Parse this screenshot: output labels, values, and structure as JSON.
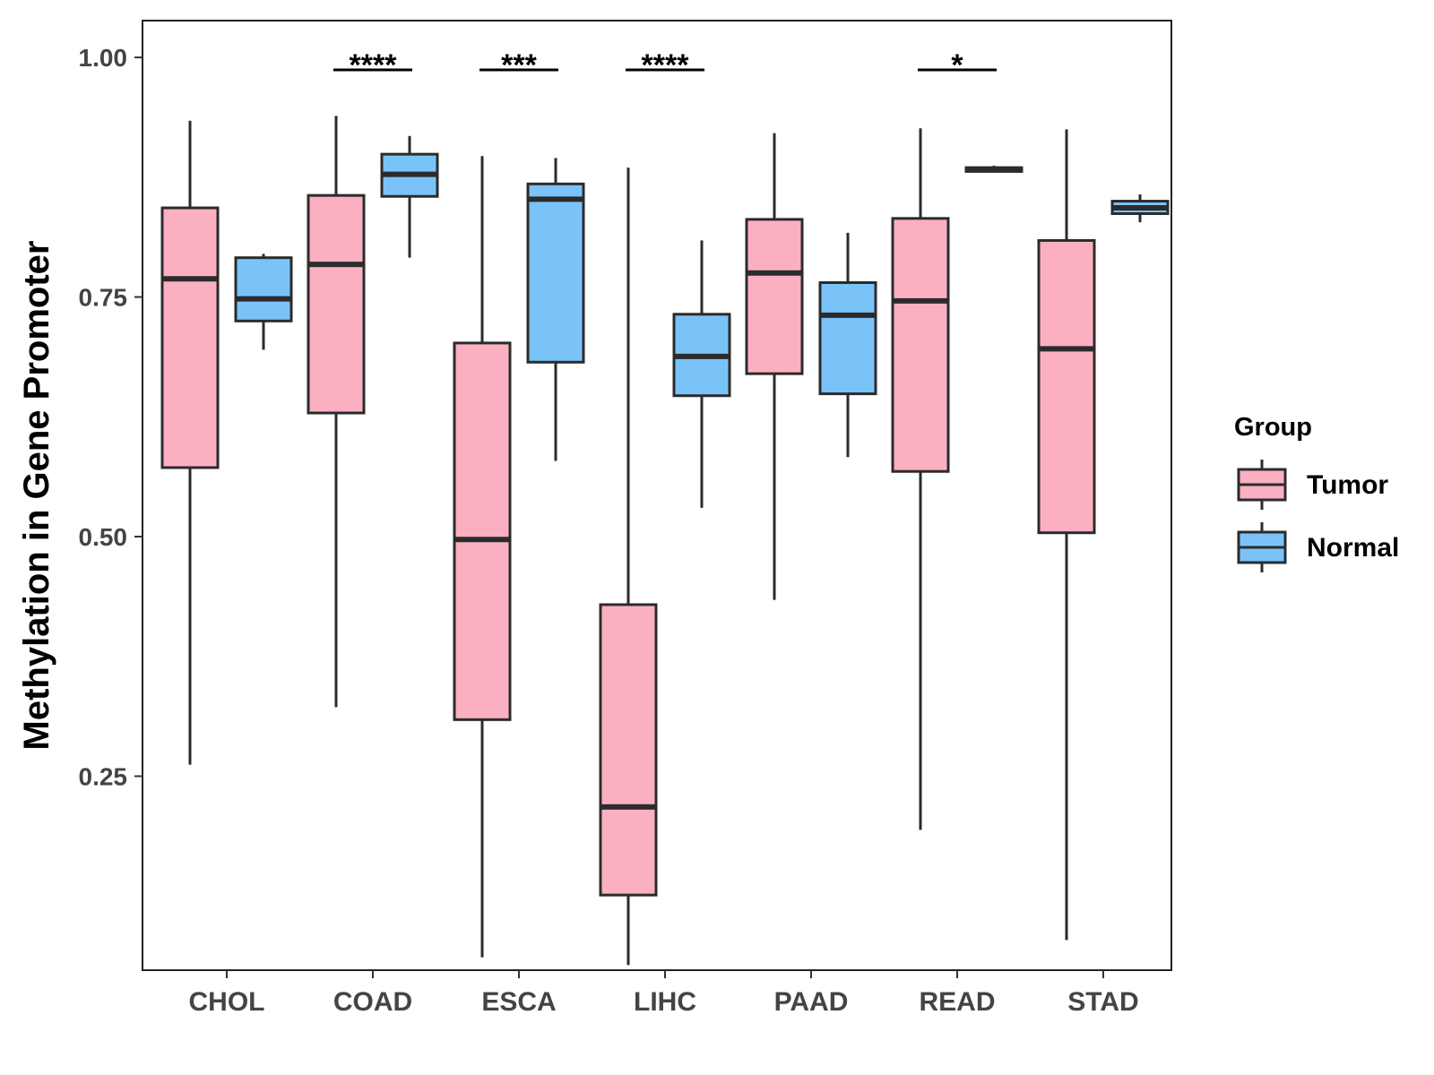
{
  "chart_data": {
    "type": "boxplot",
    "title": "",
    "xlabel": "",
    "ylabel": "Methylation in Gene Promoter",
    "ylim": [
      0.0476,
      1.0384
    ],
    "yticks": [
      0.25,
      0.5,
      0.75,
      1.0
    ],
    "ytick_labels": [
      "0.25",
      "0.50",
      "0.75",
      "1.00"
    ],
    "categories": [
      "CHOL",
      "COAD",
      "ESCA",
      "LIHC",
      "PAAD",
      "READ",
      "STAD"
    ],
    "legend": {
      "title": "Group",
      "placement": "right",
      "entries": [
        "Tumor",
        "Normal"
      ]
    },
    "colors": {
      "Tumor": "#fbb0c2",
      "Normal": "#7ac3f9",
      "line": "#2b2b2b"
    },
    "series": [
      {
        "name": "Tumor",
        "boxes": [
          {
            "category": "CHOL",
            "whisker_low": 0.262,
            "q1": 0.572,
            "median": 0.769,
            "q3": 0.843,
            "whisker_high": 0.934
          },
          {
            "category": "COAD",
            "whisker_low": 0.322,
            "q1": 0.629,
            "median": 0.784,
            "q3": 0.856,
            "whisker_high": 0.939
          },
          {
            "category": "ESCA",
            "whisker_low": 0.061,
            "q1": 0.309,
            "median": 0.497,
            "q3": 0.702,
            "whisker_high": 0.897
          },
          {
            "category": "LIHC",
            "whisker_low": 0.053,
            "q1": 0.126,
            "median": 0.218,
            "q3": 0.429,
            "whisker_high": 0.885
          },
          {
            "category": "PAAD",
            "whisker_low": 0.434,
            "q1": 0.67,
            "median": 0.775,
            "q3": 0.831,
            "whisker_high": 0.921
          },
          {
            "category": "READ",
            "whisker_low": 0.194,
            "q1": 0.568,
            "median": 0.746,
            "q3": 0.832,
            "whisker_high": 0.926
          },
          {
            "category": "STAD",
            "whisker_low": 0.079,
            "q1": 0.504,
            "median": 0.696,
            "q3": 0.809,
            "whisker_high": 0.925
          }
        ]
      },
      {
        "name": "Normal",
        "boxes": [
          {
            "category": "CHOL",
            "whisker_low": 0.695,
            "q1": 0.725,
            "median": 0.748,
            "q3": 0.791,
            "whisker_high": 0.795
          },
          {
            "category": "COAD",
            "whisker_low": 0.791,
            "q1": 0.855,
            "median": 0.878,
            "q3": 0.899,
            "whisker_high": 0.918
          },
          {
            "category": "ESCA",
            "whisker_low": 0.579,
            "q1": 0.682,
            "median": 0.852,
            "q3": 0.868,
            "whisker_high": 0.895
          },
          {
            "category": "LIHC",
            "whisker_low": 0.53,
            "q1": 0.647,
            "median": 0.688,
            "q3": 0.732,
            "whisker_high": 0.809
          },
          {
            "category": "PAAD",
            "whisker_low": 0.583,
            "q1": 0.649,
            "median": 0.731,
            "q3": 0.765,
            "whisker_high": 0.817
          },
          {
            "category": "READ",
            "whisker_low": 0.88,
            "q1": 0.881,
            "median": 0.883,
            "q3": 0.885,
            "whisker_high": 0.887
          },
          {
            "category": "STAD",
            "whisker_low": 0.828,
            "q1": 0.837,
            "median": 0.843,
            "q3": 0.85,
            "whisker_high": 0.857
          }
        ]
      }
    ],
    "significance": [
      {
        "category": "COAD",
        "label": "****"
      },
      {
        "category": "ESCA",
        "label": "***"
      },
      {
        "category": "LIHC",
        "label": "****"
      },
      {
        "category": "READ",
        "label": "*"
      }
    ],
    "significance_level": 0.987
  }
}
